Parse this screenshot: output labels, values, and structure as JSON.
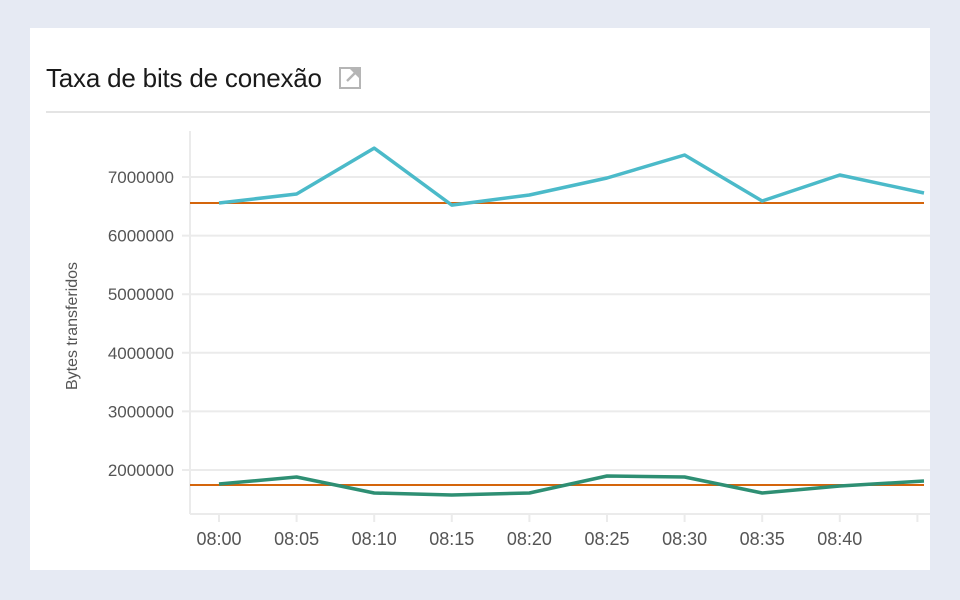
{
  "panel": {
    "title": "Taxa de bits de conexão",
    "external_link_icon": "external-link-icon"
  },
  "colors": {
    "series_upper": "#4bbac9",
    "series_lower": "#2e8f73",
    "threshold": "#d4650c",
    "grid": "#ebebeb",
    "background": "#e6eaf3"
  },
  "chart_data": {
    "type": "line",
    "title": "Taxa de bits de conexão",
    "xlabel": "",
    "ylabel": "Bytes transferidos",
    "x": [
      "08:00",
      "08:05",
      "08:10",
      "08:15",
      "08:20",
      "08:25",
      "08:30",
      "08:35",
      "08:40",
      "08:45"
    ],
    "x_tick_labels": [
      "08:00",
      "08:05",
      "08:10",
      "08:15",
      "08:20",
      "08:25",
      "08:30",
      "08:35",
      "08:40"
    ],
    "y_ticks": [
      2000000,
      3000000,
      4000000,
      5000000,
      6000000,
      7000000
    ],
    "y_tick_labels": [
      "2000000",
      "3000000",
      "4000000",
      "5000000",
      "6000000",
      "7000000"
    ],
    "ylim": [
      1250000,
      7800000
    ],
    "grid": true,
    "legend": "none",
    "series": [
      {
        "name": "upper",
        "color": "#4bbac9",
        "values": [
          6557000,
          6710000,
          7494000,
          6520000,
          6693000,
          6983000,
          7375000,
          6591000,
          7034000,
          6727000
        ]
      },
      {
        "name": "lower",
        "color": "#2e8f73",
        "values": [
          1761000,
          1881000,
          1608000,
          1574000,
          1608000,
          1898000,
          1881000,
          1608000,
          1727000,
          1813000
        ]
      }
    ],
    "reference_lines": [
      {
        "name": "upper-baseline",
        "value": 6557000,
        "color": "#d4650c"
      },
      {
        "name": "lower-baseline",
        "value": 1744000,
        "color": "#d4650c"
      }
    ]
  }
}
